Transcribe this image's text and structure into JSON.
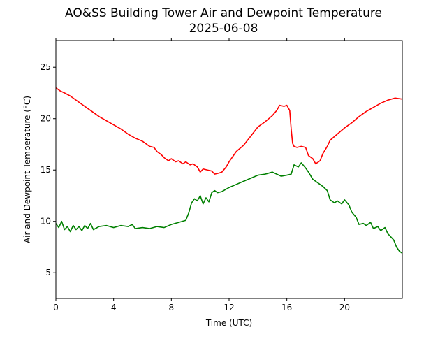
{
  "chart_data": {
    "type": "line",
    "title": "AO&SS Building Tower Air and Dewpoint Temperature",
    "subtitle": "2025-06-08",
    "xlabel": "Time (UTC)",
    "ylabel": "Air and Dewpoint Temperature (°C)",
    "xlim": [
      0,
      24
    ],
    "ylim": [
      2.5,
      27.6
    ],
    "xticks": [
      0,
      4,
      8,
      12,
      16,
      20
    ],
    "yticks": [
      5,
      10,
      15,
      20,
      25
    ],
    "grid": false,
    "legend": "none",
    "series": [
      {
        "color": "#ff0000",
        "x": [
          0,
          0.3,
          0.6,
          1.0,
          1.5,
          2.0,
          2.5,
          3.0,
          3.5,
          4.0,
          4.5,
          5.0,
          5.5,
          6.0,
          6.3,
          6.5,
          6.8,
          7.0,
          7.3,
          7.5,
          7.8,
          8.0,
          8.3,
          8.5,
          8.8,
          9.0,
          9.3,
          9.5,
          9.8,
          10.0,
          10.2,
          10.5,
          10.8,
          11.0,
          11.3,
          11.5,
          11.8,
          12.0,
          12.5,
          13.0,
          13.5,
          14.0,
          14.5,
          15.0,
          15.3,
          15.5,
          15.8,
          16.0,
          16.2,
          16.3,
          16.4,
          16.5,
          16.7,
          17.0,
          17.3,
          17.5,
          17.8,
          18.0,
          18.3,
          18.5,
          18.8,
          19.0,
          19.5,
          20.0,
          20.5,
          21.0,
          21.5,
          22.0,
          22.5,
          23.0,
          23.5,
          24.0
        ],
        "values": [
          23.0,
          22.7,
          22.5,
          22.2,
          21.7,
          21.2,
          20.7,
          20.2,
          19.8,
          19.4,
          19.0,
          18.5,
          18.1,
          17.8,
          17.5,
          17.3,
          17.2,
          16.8,
          16.5,
          16.2,
          15.9,
          16.1,
          15.8,
          15.9,
          15.6,
          15.8,
          15.5,
          15.6,
          15.3,
          14.8,
          15.1,
          15.0,
          14.9,
          14.6,
          14.7,
          14.8,
          15.3,
          15.8,
          16.8,
          17.4,
          18.3,
          19.2,
          19.7,
          20.3,
          20.8,
          21.3,
          21.2,
          21.3,
          20.8,
          19.0,
          17.6,
          17.3,
          17.2,
          17.3,
          17.2,
          16.4,
          16.1,
          15.6,
          15.9,
          16.6,
          17.3,
          17.9,
          18.5,
          19.1,
          19.6,
          20.2,
          20.7,
          21.1,
          21.5,
          21.8,
          22.0,
          21.9
        ]
      },
      {
        "color": "#008000",
        "x": [
          0,
          0.2,
          0.4,
          0.6,
          0.8,
          1.0,
          1.2,
          1.4,
          1.6,
          1.8,
          2.0,
          2.2,
          2.4,
          2.6,
          3.0,
          3.5,
          4.0,
          4.5,
          5.0,
          5.3,
          5.5,
          6.0,
          6.5,
          7.0,
          7.5,
          8.0,
          8.5,
          9.0,
          9.2,
          9.4,
          9.6,
          9.8,
          10.0,
          10.2,
          10.4,
          10.6,
          10.8,
          11.0,
          11.2,
          11.5,
          12.0,
          12.5,
          13.0,
          13.5,
          14.0,
          14.5,
          15.0,
          15.3,
          15.6,
          16.0,
          16.3,
          16.5,
          16.8,
          17.0,
          17.3,
          17.5,
          17.8,
          18.0,
          18.3,
          18.5,
          18.8,
          19.0,
          19.3,
          19.5,
          19.8,
          20.0,
          20.3,
          20.5,
          20.8,
          21.0,
          21.3,
          21.5,
          21.8,
          22.0,
          22.3,
          22.5,
          22.8,
          23.0,
          23.2,
          23.4,
          23.6,
          23.8,
          24.0
        ],
        "values": [
          9.8,
          9.4,
          10.0,
          9.2,
          9.5,
          9.0,
          9.6,
          9.2,
          9.5,
          9.1,
          9.6,
          9.3,
          9.8,
          9.2,
          9.5,
          9.6,
          9.4,
          9.6,
          9.5,
          9.7,
          9.3,
          9.4,
          9.3,
          9.5,
          9.4,
          9.7,
          9.9,
          10.1,
          10.8,
          11.8,
          12.2,
          12.0,
          12.5,
          11.7,
          12.3,
          11.9,
          12.8,
          13.0,
          12.8,
          12.9,
          13.3,
          13.6,
          13.9,
          14.2,
          14.5,
          14.6,
          14.8,
          14.6,
          14.4,
          14.5,
          14.6,
          15.5,
          15.3,
          15.7,
          15.2,
          14.8,
          14.1,
          13.9,
          13.6,
          13.4,
          13.0,
          12.1,
          11.8,
          12.0,
          11.7,
          12.1,
          11.6,
          10.9,
          10.4,
          9.7,
          9.8,
          9.6,
          9.9,
          9.3,
          9.5,
          9.1,
          9.4,
          8.8,
          8.5,
          8.2,
          7.5,
          7.1,
          6.9
        ]
      }
    ]
  }
}
